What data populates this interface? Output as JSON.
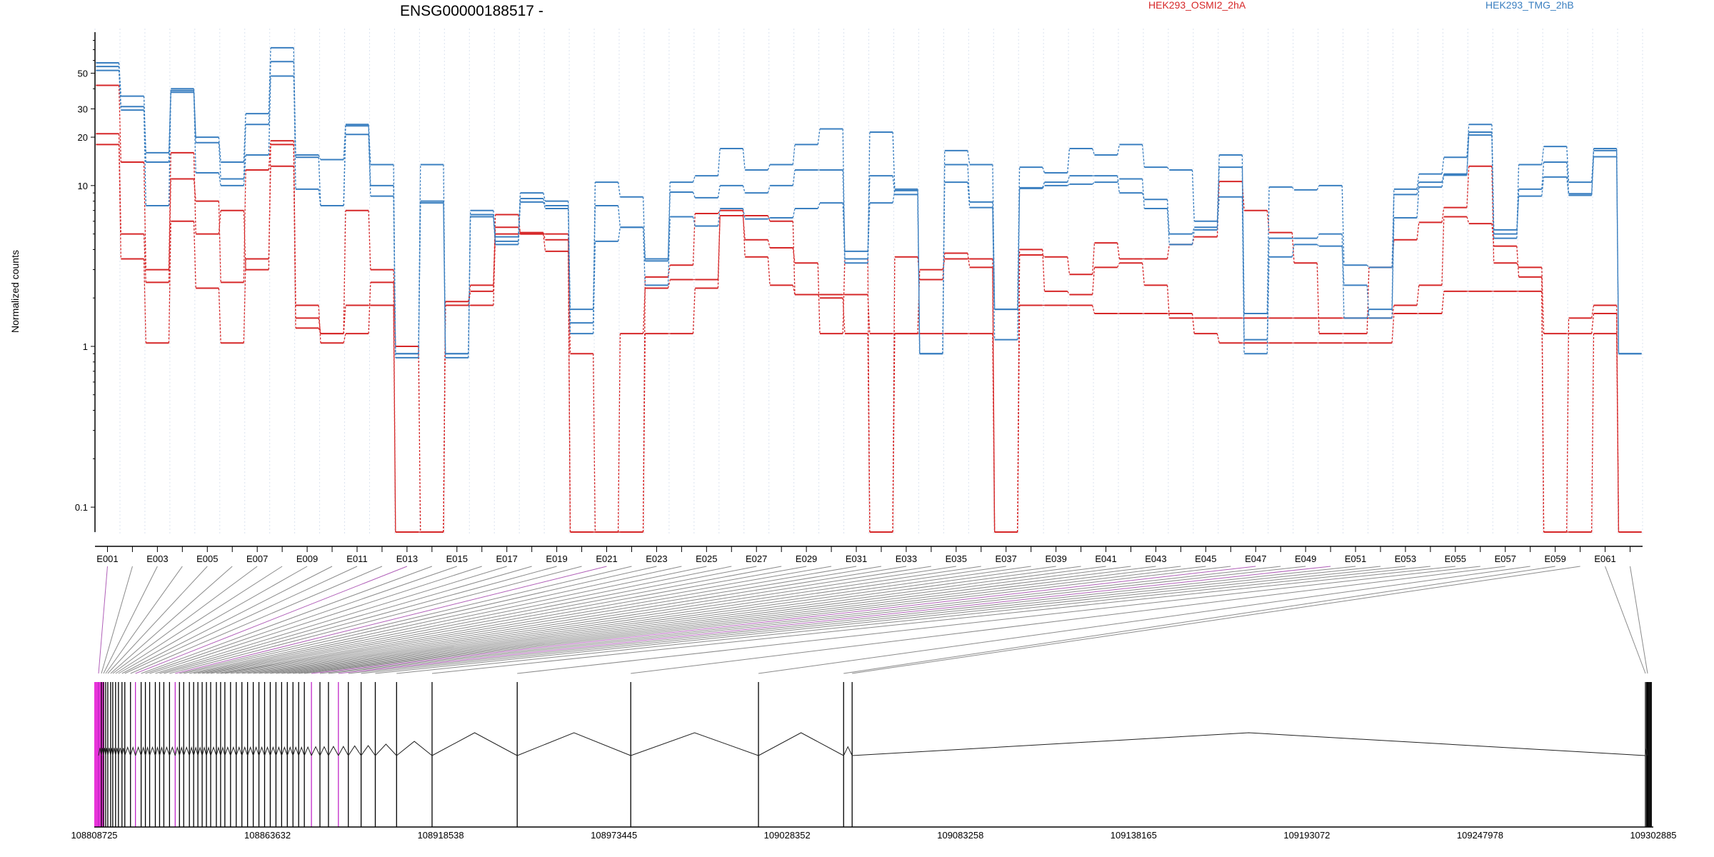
{
  "chart_data": {
    "type": "line",
    "title": "ENSG00000188517 -",
    "ylabel": "Normalized counts",
    "yscale": "log",
    "ylim": [
      0.07,
      90
    ],
    "yticks": [
      0.1,
      1,
      10,
      20,
      30,
      50
    ],
    "ytick_labels": [
      "0.1",
      "1",
      "10",
      "20",
      "30",
      "50"
    ],
    "legend": [
      {
        "name": "HEK293_OSMI2_2hA",
        "color": "#d62728"
      },
      {
        "name": "HEK293_TMG_2hB",
        "color": "#3a7fc0"
      }
    ],
    "x_labels": [
      "E001",
      "E003",
      "E005",
      "E007",
      "E009",
      "E011",
      "E013",
      "E015",
      "E017",
      "E019",
      "E021",
      "E023",
      "E025",
      "E027",
      "E029",
      "E031",
      "E033",
      "E035",
      "E037",
      "E039",
      "E041",
      "E043",
      "E045",
      "E047",
      "E049",
      "E051",
      "E053",
      "E055",
      "E057",
      "E059",
      "E061"
    ],
    "exon_count": 62,
    "series": [
      {
        "color": "#d62728",
        "values": [
          42,
          14,
          3,
          16,
          5,
          7,
          3,
          18,
          1.3,
          1.2,
          7,
          3,
          1,
          0.07,
          1.8,
          2.2,
          6.6,
          5,
          3.9,
          0.07,
          0.07,
          1.2,
          2.3,
          2.6,
          2.6,
          6.5,
          4.6,
          4.1,
          3.3,
          1.2,
          3.5,
          0.07,
          3.6,
          2.6,
          3.8,
          3.1,
          0.07,
          4,
          2.2,
          2.1,
          3.1,
          3.3,
          2.4,
          1.5,
          1.5,
          1.5,
          1.5,
          1.5,
          1.5,
          1.5,
          1.5,
          1.5,
          1.8,
          2.4,
          6.4,
          5.8,
          4.2,
          2.7,
          0.07,
          1.5,
          1.8,
          0.07
        ]
      },
      {
        "color": "#d62728",
        "values": [
          21,
          5,
          2.5,
          11,
          8,
          2.5,
          12.5,
          19,
          1.8,
          1.05,
          1.2,
          2.5,
          0.07,
          0.07,
          1.9,
          2.4,
          5.5,
          5.1,
          4.6,
          0.9,
          0.07,
          0.07,
          2.7,
          3.2,
          6.7,
          7,
          3.6,
          2.4,
          2.1,
          2,
          1.2,
          0.07,
          1.2,
          3,
          3.5,
          3.5,
          0.07,
          3.7,
          3.6,
          2.8,
          4.4,
          3.5,
          3.5,
          4.3,
          4.8,
          10.6,
          7,
          5.1,
          3.3,
          1.2,
          1.2,
          3.1,
          4.6,
          5.9,
          7.3,
          13.2,
          3.3,
          3.1,
          1.2,
          1.2,
          1.6,
          0.07
        ]
      },
      {
        "color": "#d62728",
        "values": [
          18,
          3.5,
          1.05,
          6,
          2.3,
          1.05,
          3.5,
          13.2,
          1.5,
          1.2,
          1.8,
          1.8,
          0.07,
          0.07,
          1.8,
          1.8,
          5,
          5,
          5,
          0.07,
          0.07,
          0.07,
          1.2,
          1.2,
          2.3,
          6.5,
          6.5,
          6,
          2.1,
          2.1,
          2.1,
          1.2,
          1.2,
          1.2,
          1.2,
          1.2,
          0.07,
          1.8,
          1.8,
          1.8,
          1.6,
          1.6,
          1.6,
          1.6,
          1.2,
          1.05,
          1.05,
          1.05,
          1.05,
          1.05,
          1.05,
          1.05,
          1.6,
          1.6,
          2.2,
          2.2,
          2.2,
          2.2,
          0.07,
          0.07,
          1.2,
          0.07
        ]
      },
      {
        "color": "#3a7fc0",
        "values": [
          58,
          36,
          16,
          40,
          20,
          14,
          28,
          72,
          15.5,
          14.5,
          24,
          13.5,
          0.9,
          13.5,
          0.9,
          7,
          4.8,
          9,
          8,
          1.4,
          10.5,
          8.5,
          3.5,
          10.5,
          11.5,
          17,
          12.5,
          13.5,
          18,
          22.5,
          3.3,
          21.5,
          9.5,
          0.9,
          16.5,
          13.5,
          1.7,
          13,
          12,
          17,
          15.5,
          18,
          13,
          12.5,
          6,
          15.5,
          1.6,
          9.8,
          9.4,
          10,
          3.2,
          3.1,
          9.5,
          11.8,
          15,
          24,
          5,
          13.5,
          17.5,
          10.5,
          17,
          0.9
        ]
      },
      {
        "color": "#3a7fc0",
        "values": [
          55,
          31,
          14,
          39,
          18.5,
          11,
          24,
          59,
          9.5,
          7.5,
          23.5,
          10,
          0.9,
          8,
          0.9,
          6.6,
          4.5,
          8.3,
          7.5,
          1.7,
          7.5,
          5.5,
          3.4,
          9.1,
          8.4,
          10,
          9,
          10,
          12.5,
          12.5,
          3.9,
          11.5,
          8.8,
          0.9,
          13.5,
          7.9,
          1.7,
          9.7,
          10.5,
          11.5,
          11.5,
          9,
          8.2,
          5,
          5.5,
          13,
          1.1,
          4.7,
          4.7,
          5,
          1.5,
          1.7,
          8.8,
          10.5,
          11.8,
          21.5,
          4.7,
          9.5,
          14,
          8.9,
          16.5,
          0.9
        ]
      },
      {
        "color": "#3a7fc0",
        "values": [
          52,
          29.5,
          7.5,
          38,
          12,
          10,
          15.5,
          48,
          15,
          7.5,
          20.8,
          8.6,
          0.85,
          7.8,
          0.85,
          6.4,
          4.3,
          7.9,
          7.2,
          1.2,
          4.5,
          5.5,
          2.4,
          6.4,
          5.6,
          7.2,
          6.2,
          6.3,
          7.2,
          7.8,
          3.5,
          7.8,
          9.3,
          0.9,
          10.5,
          7.3,
          1.1,
          9.6,
          10,
          10.2,
          10.5,
          11,
          7.2,
          4.3,
          5.3,
          8.5,
          0.9,
          3.6,
          4.3,
          4.2,
          2.4,
          1.5,
          6.3,
          9.8,
          11.6,
          20.6,
          5.3,
          8.6,
          11.3,
          8.7,
          15.1,
          0.9
        ]
      }
    ]
  },
  "genomic_axis": {
    "tick_labels": [
      "108808725",
      "108863632",
      "108918538",
      "108973445",
      "109028352",
      "109083258",
      "109138165",
      "109193072",
      "109247978",
      "109302885"
    ]
  }
}
